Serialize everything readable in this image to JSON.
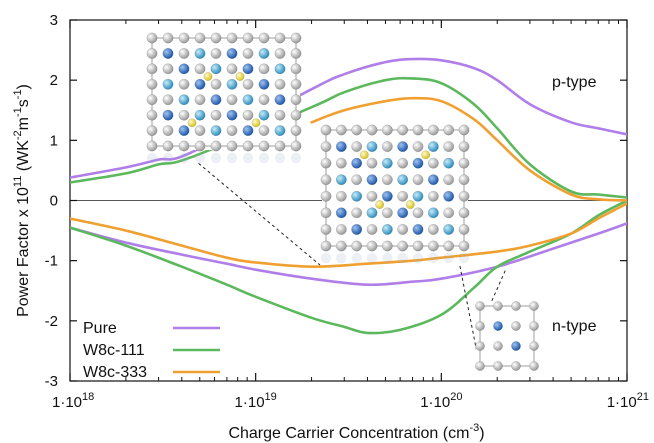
{
  "chart_data": {
    "type": "line",
    "xlabel": "Charge Carrier Concentration (cm",
    "xlabel_sup": "-3",
    "xlabel_end": ")",
    "ylabel": "Power Factor x 10",
    "ylabel_exp": "11",
    "ylabel_unit": "(WK",
    "ylabel_unit_sup1": "-2",
    "ylabel_unit_mid": "m",
    "ylabel_unit_sup2": "-1",
    "ylabel_unit_mid2": "s",
    "ylabel_unit_sup3": "-1",
    "ylabel_unit_end": ")",
    "x_scale": "log",
    "xlim": [
      1e+18,
      1e+21
    ],
    "ylim": [
      -3,
      3
    ],
    "x_ticks": [
      {
        "value": 1e+18,
        "label": "1·10",
        "exp": "18"
      },
      {
        "value": 1e+19,
        "label": "1·10",
        "exp": "19"
      },
      {
        "value": 1e+20,
        "label": "1·10",
        "exp": "20"
      },
      {
        "value": 1e+21,
        "label": "1·10",
        "exp": "21"
      }
    ],
    "y_ticks": [
      {
        "value": 3,
        "label": "3"
      },
      {
        "value": 2,
        "label": "2"
      },
      {
        "value": 1,
        "label": "1"
      },
      {
        "value": 0,
        "label": "0"
      },
      {
        "value": -1,
        "label": "-1"
      },
      {
        "value": -2,
        "label": "-2"
      },
      {
        "value": -3,
        "label": "-3"
      }
    ],
    "annotations": [
      {
        "text": "p-type",
        "x": 5e+20,
        "y": 2.0
      },
      {
        "text": "n-type",
        "x": 5e+20,
        "y": -2.15
      }
    ],
    "legend_position": "bottom-left",
    "series": [
      {
        "name": "Pure",
        "color": "#b07ee8",
        "p_type": {
          "x": [
            1e+18,
            2e+18,
            3e+18,
            4.5e+18,
            2e+19,
            3e+19,
            5e+19,
            7e+19,
            1e+20,
            1.5e+20,
            2e+20,
            3e+20,
            5e+20,
            7e+20,
            1e+21
          ],
          "y": [
            0.38,
            0.55,
            0.68,
            0.8,
            1.85,
            2.1,
            2.3,
            2.35,
            2.33,
            2.2,
            2.0,
            1.6,
            1.3,
            1.2,
            1.1
          ]
        },
        "n_type": {
          "x": [
            1e+18,
            2e+18,
            4e+18,
            7e+18,
            1e+19,
            2e+19,
            4e+19,
            7e+19,
            1e+20,
            2e+20,
            4e+20,
            7e+20,
            1e+21
          ],
          "y": [
            -0.45,
            -0.7,
            -0.9,
            -1.05,
            -1.15,
            -1.3,
            -1.4,
            -1.35,
            -1.3,
            -1.1,
            -0.8,
            -0.55,
            -0.38
          ]
        }
      },
      {
        "name": "W8c-111",
        "color": "#5cb85c",
        "p_type": {
          "x": [
            1e+18,
            2e+18,
            3e+18,
            4.5e+18,
            2e+19,
            3e+19,
            5e+19,
            7e+19,
            1e+20,
            1.5e+20,
            2e+20,
            3e+20,
            5e+20,
            7e+20,
            1e+21
          ],
          "y": [
            0.3,
            0.45,
            0.6,
            0.72,
            1.55,
            1.8,
            2.0,
            2.03,
            1.95,
            1.6,
            1.2,
            0.6,
            0.15,
            0.1,
            0.05
          ]
        },
        "n_type": {
          "x": [
            1e+18,
            2e+18,
            4e+18,
            7e+18,
            1e+19,
            2e+19,
            3e+19,
            4e+19,
            6e+19,
            1e+20,
            1.5e+20,
            2e+20,
            3e+20,
            5e+20,
            7e+20,
            1e+21
          ],
          "y": [
            -0.45,
            -0.75,
            -1.1,
            -1.4,
            -1.6,
            -1.95,
            -2.1,
            -2.2,
            -2.15,
            -1.9,
            -1.45,
            -1.1,
            -0.85,
            -0.55,
            -0.25,
            0
          ]
        }
      },
      {
        "name": "W8c-333",
        "color": "#f0a030",
        "p_type": {
          "x": [
            2e+19,
            3e+19,
            5e+19,
            7e+19,
            1e+20,
            1.5e+20,
            2e+20,
            3e+20,
            5e+20,
            7e+20,
            1e+21
          ],
          "y": [
            1.3,
            1.5,
            1.65,
            1.7,
            1.65,
            1.35,
            1.0,
            0.5,
            0.1,
            0.02,
            0.0
          ]
        },
        "n_type": {
          "x": [
            1e+18,
            2e+18,
            4e+18,
            7e+18,
            1e+19,
            2e+19,
            4e+19,
            7e+19,
            1e+20,
            2e+20,
            3e+20,
            5e+20,
            7e+20,
            1e+21
          ],
          "y": [
            -0.3,
            -0.5,
            -0.75,
            -0.95,
            -1.03,
            -1.1,
            -1.05,
            -1.0,
            -0.95,
            -0.85,
            -0.75,
            -0.55,
            -0.3,
            -0.05
          ]
        }
      }
    ],
    "insets": [
      {
        "name": "large-supercell-inset",
        "pointer_to": {
          "x": 3e+18,
          "y": 0.7
        }
      },
      {
        "name": "medium-supercell-inset",
        "pointer_to": {
          "x": 2.5e+20,
          "y": -1.0
        }
      },
      {
        "name": "small-supercell-inset",
        "pointer_to": {
          "x": 3e+20,
          "y": -3.0
        }
      }
    ]
  },
  "colors": {
    "atom_gray": "#c8c8c8",
    "atom_blue": "#3a7bd5",
    "atom_lightblue": "#5ab4e0",
    "atom_purple": "#7a6ea8",
    "atom_yellow": "#f2e14c"
  }
}
